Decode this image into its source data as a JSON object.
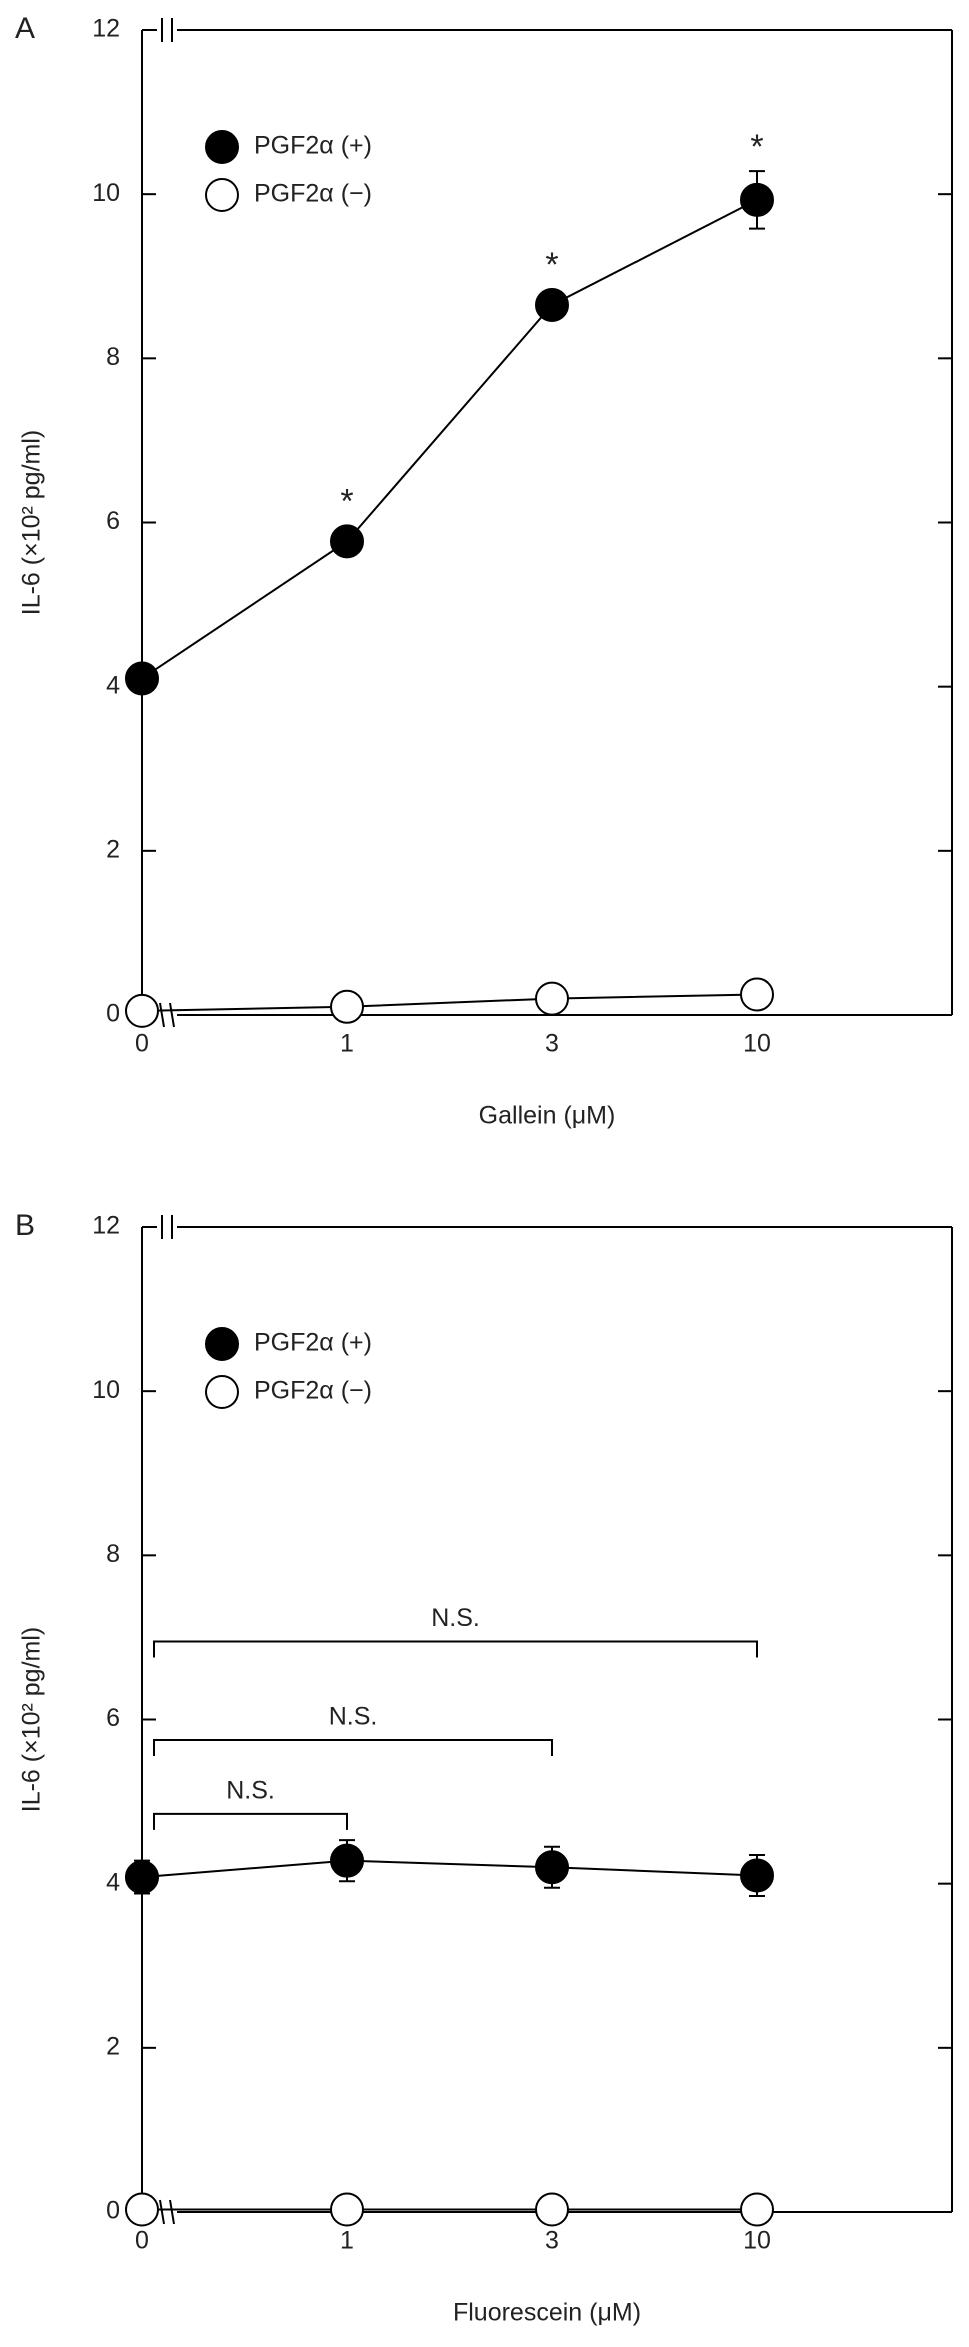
{
  "chart_data": [
    {
      "type": "line",
      "panel": "A",
      "ylabel": "IL-6 (×10² pg/ml)",
      "xlabel": "Gallein (μM)",
      "categories": [
        "0",
        "1",
        "3",
        "10"
      ],
      "ylim": [
        0,
        12
      ],
      "yticks": [
        0,
        2,
        4,
        6,
        8,
        10,
        12
      ],
      "legend": "upper left",
      "series": [
        {
          "name": "PGF2α (+)",
          "color": "#000000",
          "values": [
            4.1,
            5.77,
            8.65,
            9.93
          ],
          "errors": [
            0.05,
            0.08,
            0.1,
            0.35
          ]
        },
        {
          "name": "PGF2α (−)",
          "color": "#ffffff",
          "values": [
            0.05,
            0.1,
            0.2,
            0.25
          ]
        }
      ],
      "annotations": [
        {
          "category": "1",
          "text": "*"
        },
        {
          "category": "3",
          "text": "*"
        },
        {
          "category": "10",
          "text": "*"
        }
      ]
    },
    {
      "type": "line",
      "panel": "B",
      "ylabel": "IL-6 (×10² pg/ml)",
      "xlabel": "Fluorescein (μM)",
      "categories": [
        "0",
        "1",
        "3",
        "10"
      ],
      "ylim": [
        0,
        12
      ],
      "yticks": [
        0,
        2,
        4,
        6,
        8,
        10,
        12
      ],
      "legend": "upper left",
      "series": [
        {
          "name": "PGF2α (+)",
          "color": "#000000",
          "values": [
            4.08,
            4.28,
            4.2,
            4.1
          ],
          "errors": [
            0.2,
            0.25,
            0.25,
            0.25
          ]
        },
        {
          "name": "PGF2α (−)",
          "color": "#ffffff",
          "values": [
            0.03,
            0.03,
            0.03,
            0.03
          ]
        }
      ],
      "brackets": [
        {
          "label": "N.S.",
          "from": "0",
          "to": "1",
          "y": 4.85
        },
        {
          "label": "N.S.",
          "from": "0",
          "to": "3",
          "y": 5.75
        },
        {
          "label": "N.S.",
          "from": "0",
          "to": "10",
          "y": 6.95
        }
      ]
    }
  ]
}
